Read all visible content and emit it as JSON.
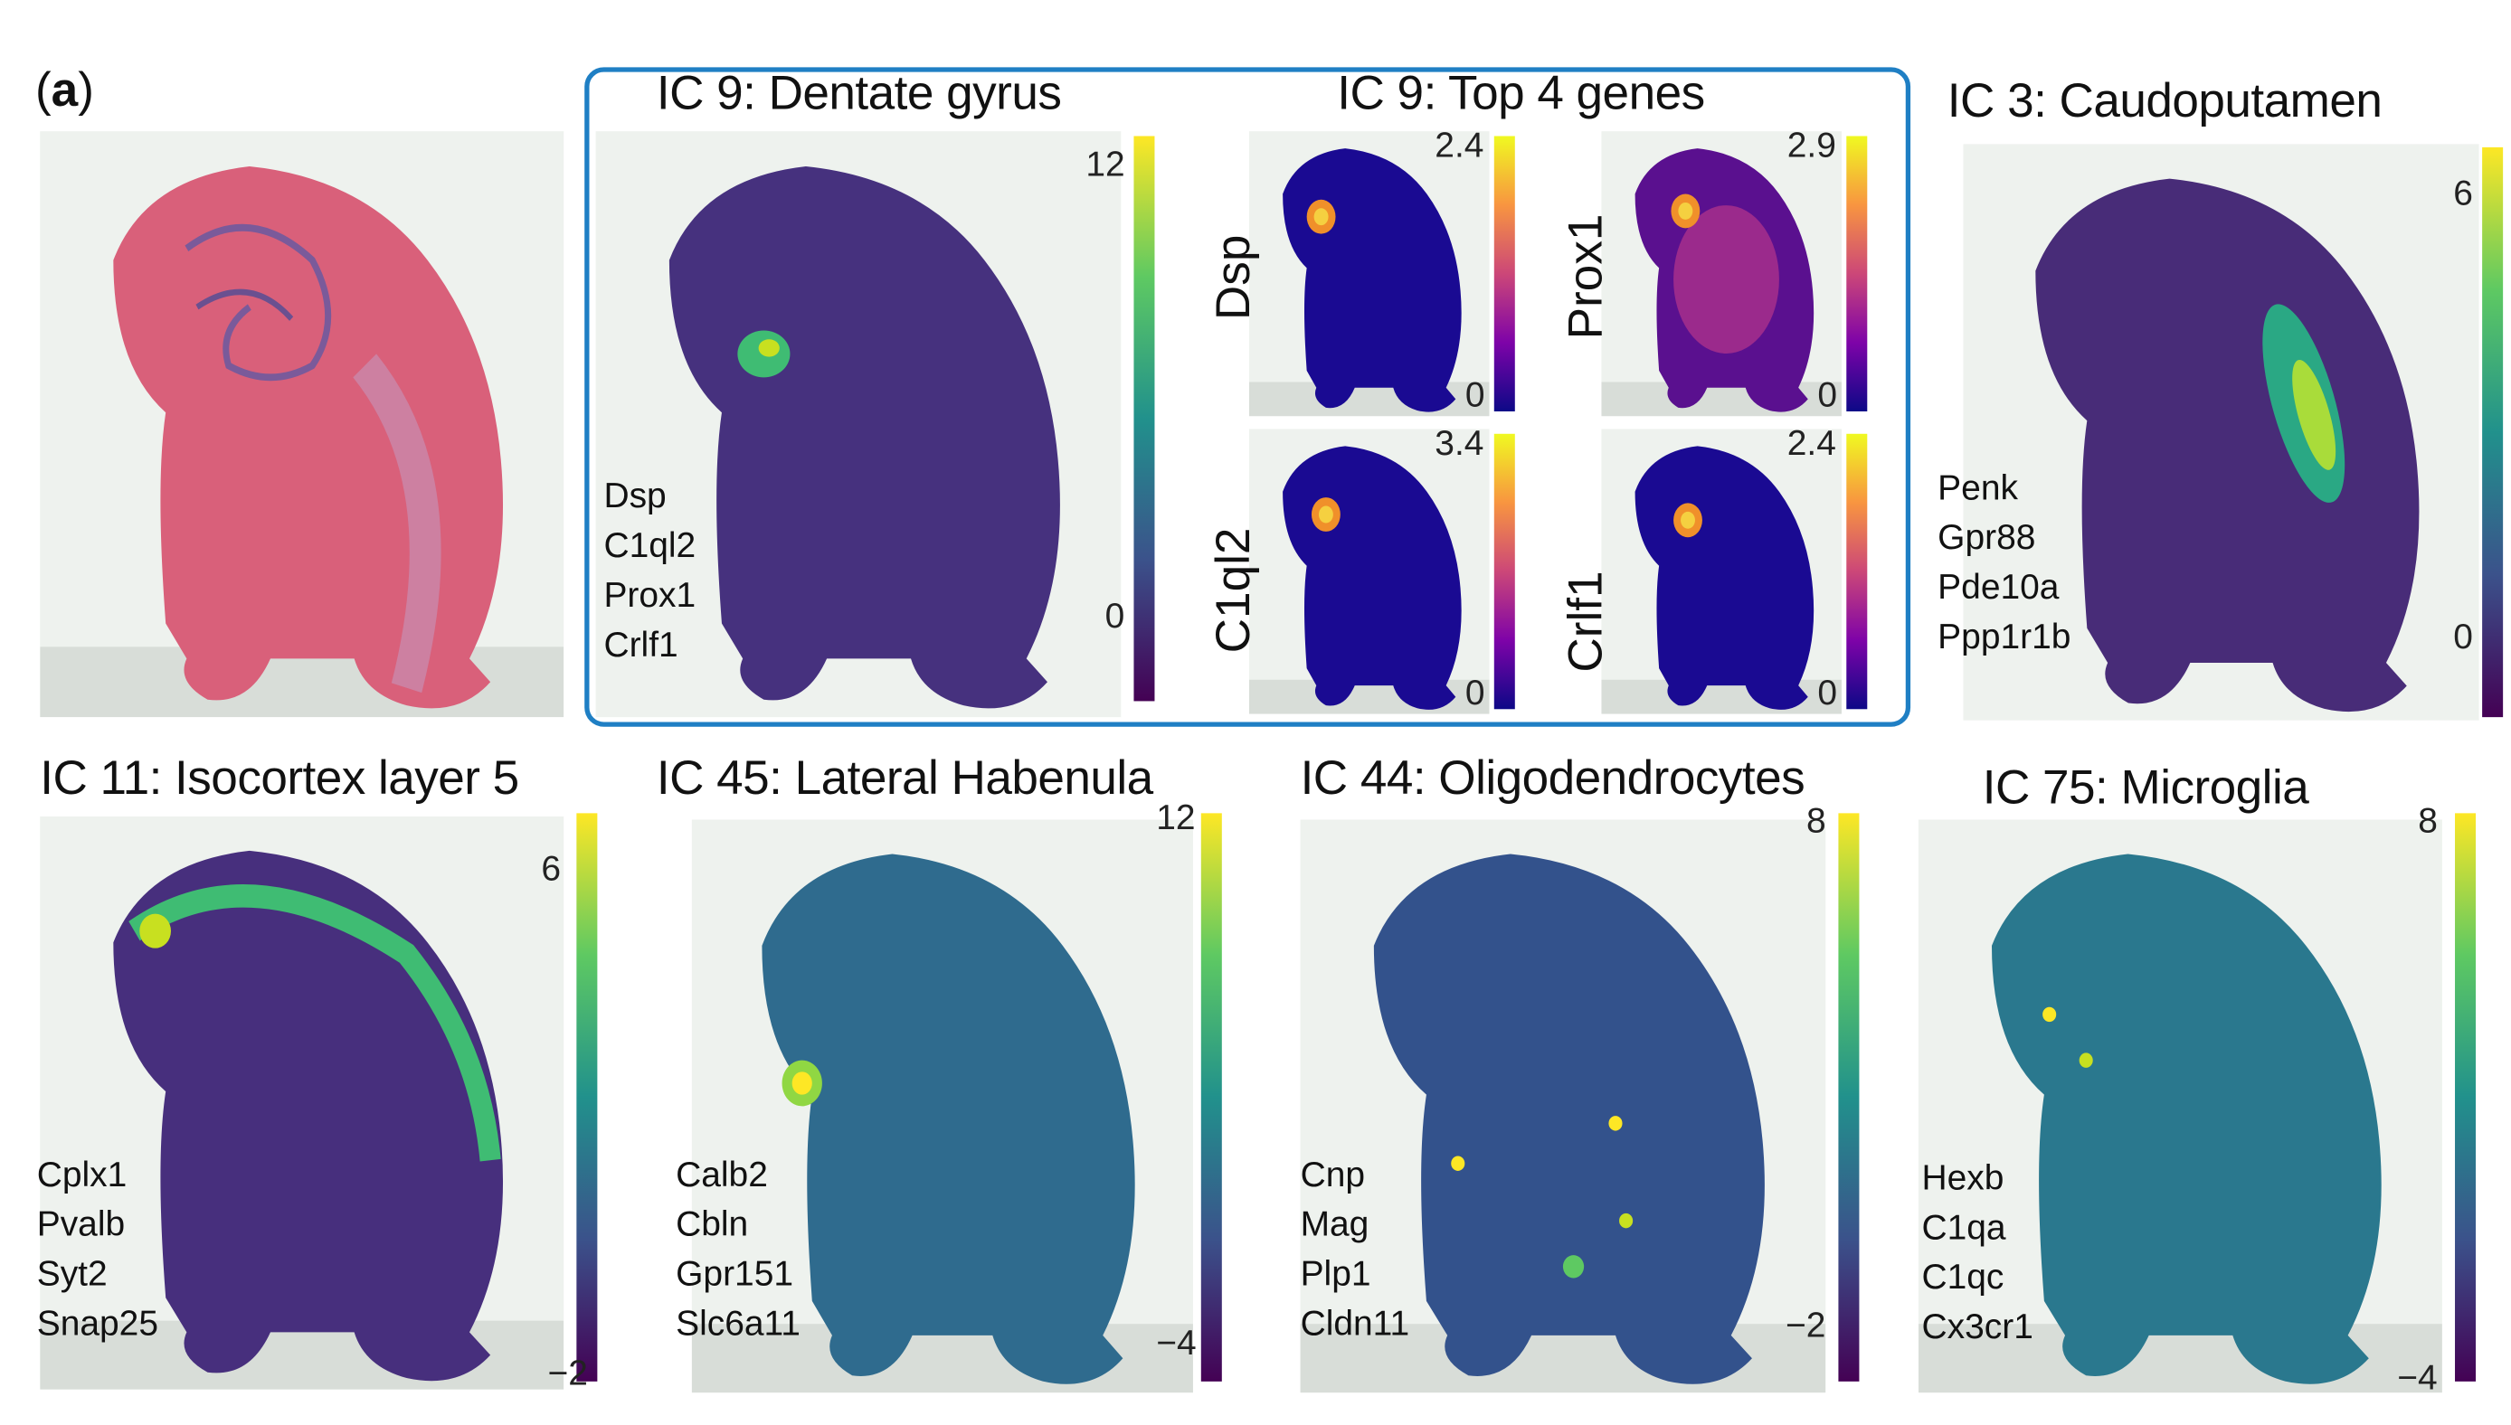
{
  "panel_label": "a",
  "colors": {
    "box_border": "#1f7fc4",
    "he_tissue": "#d9607a",
    "viridis_low": "#440154",
    "viridis_high": "#fde725",
    "plasma_low": "#0d0887",
    "plasma_high": "#f0f921"
  },
  "panels": {
    "ic9": {
      "title": "IC 9: Dentate gyrus",
      "genes": [
        "Dsp",
        "C1ql2",
        "Prox1",
        "Crlf1"
      ],
      "cbar_max": "12",
      "cbar_min": "0",
      "colormap": "viridis"
    },
    "top4": {
      "title": "IC 9: Top 4 genes",
      "colormap": "plasma",
      "genes": [
        {
          "name": "Dsp",
          "cbar_max": "2.4",
          "cbar_min": "0"
        },
        {
          "name": "Prox1",
          "cbar_max": "2.9",
          "cbar_min": "0"
        },
        {
          "name": "C1ql2",
          "cbar_max": "3.4",
          "cbar_min": "0"
        },
        {
          "name": "Crlf1",
          "cbar_max": "2.4",
          "cbar_min": "0"
        }
      ]
    },
    "ic3": {
      "title": "IC 3: Caudoputamen",
      "genes": [
        "Penk",
        "Gpr88",
        "Pde10a",
        "Ppp1r1b"
      ],
      "cbar_max": "6",
      "cbar_min": "0",
      "colormap": "viridis"
    },
    "ic11": {
      "title": "IC 11: Isocortex layer 5",
      "genes": [
        "Cplx1",
        "Pvalb",
        "Syt2",
        "Snap25"
      ],
      "cbar_max": "6",
      "cbar_min": "−2",
      "colormap": "viridis"
    },
    "ic45": {
      "title": "IC 45: Lateral Habenula",
      "genes": [
        "Calb2",
        "Cbln",
        "Gpr151",
        "Slc6a11"
      ],
      "cbar_max": "12",
      "cbar_min": "−4",
      "colormap": "viridis"
    },
    "ic44": {
      "title": "IC 44: Oligodendrocytes",
      "genes": [
        "Cnp",
        "Mag",
        "Plp1",
        "Cldn11"
      ],
      "cbar_max": "8",
      "cbar_min": "−2",
      "colormap": "viridis"
    },
    "ic75": {
      "title": "IC 75: Microglia",
      "genes": [
        "Hexb",
        "C1qa",
        "C1qc",
        "Cx3cr1"
      ],
      "cbar_max": "8",
      "cbar_min": "−4",
      "colormap": "viridis"
    }
  }
}
